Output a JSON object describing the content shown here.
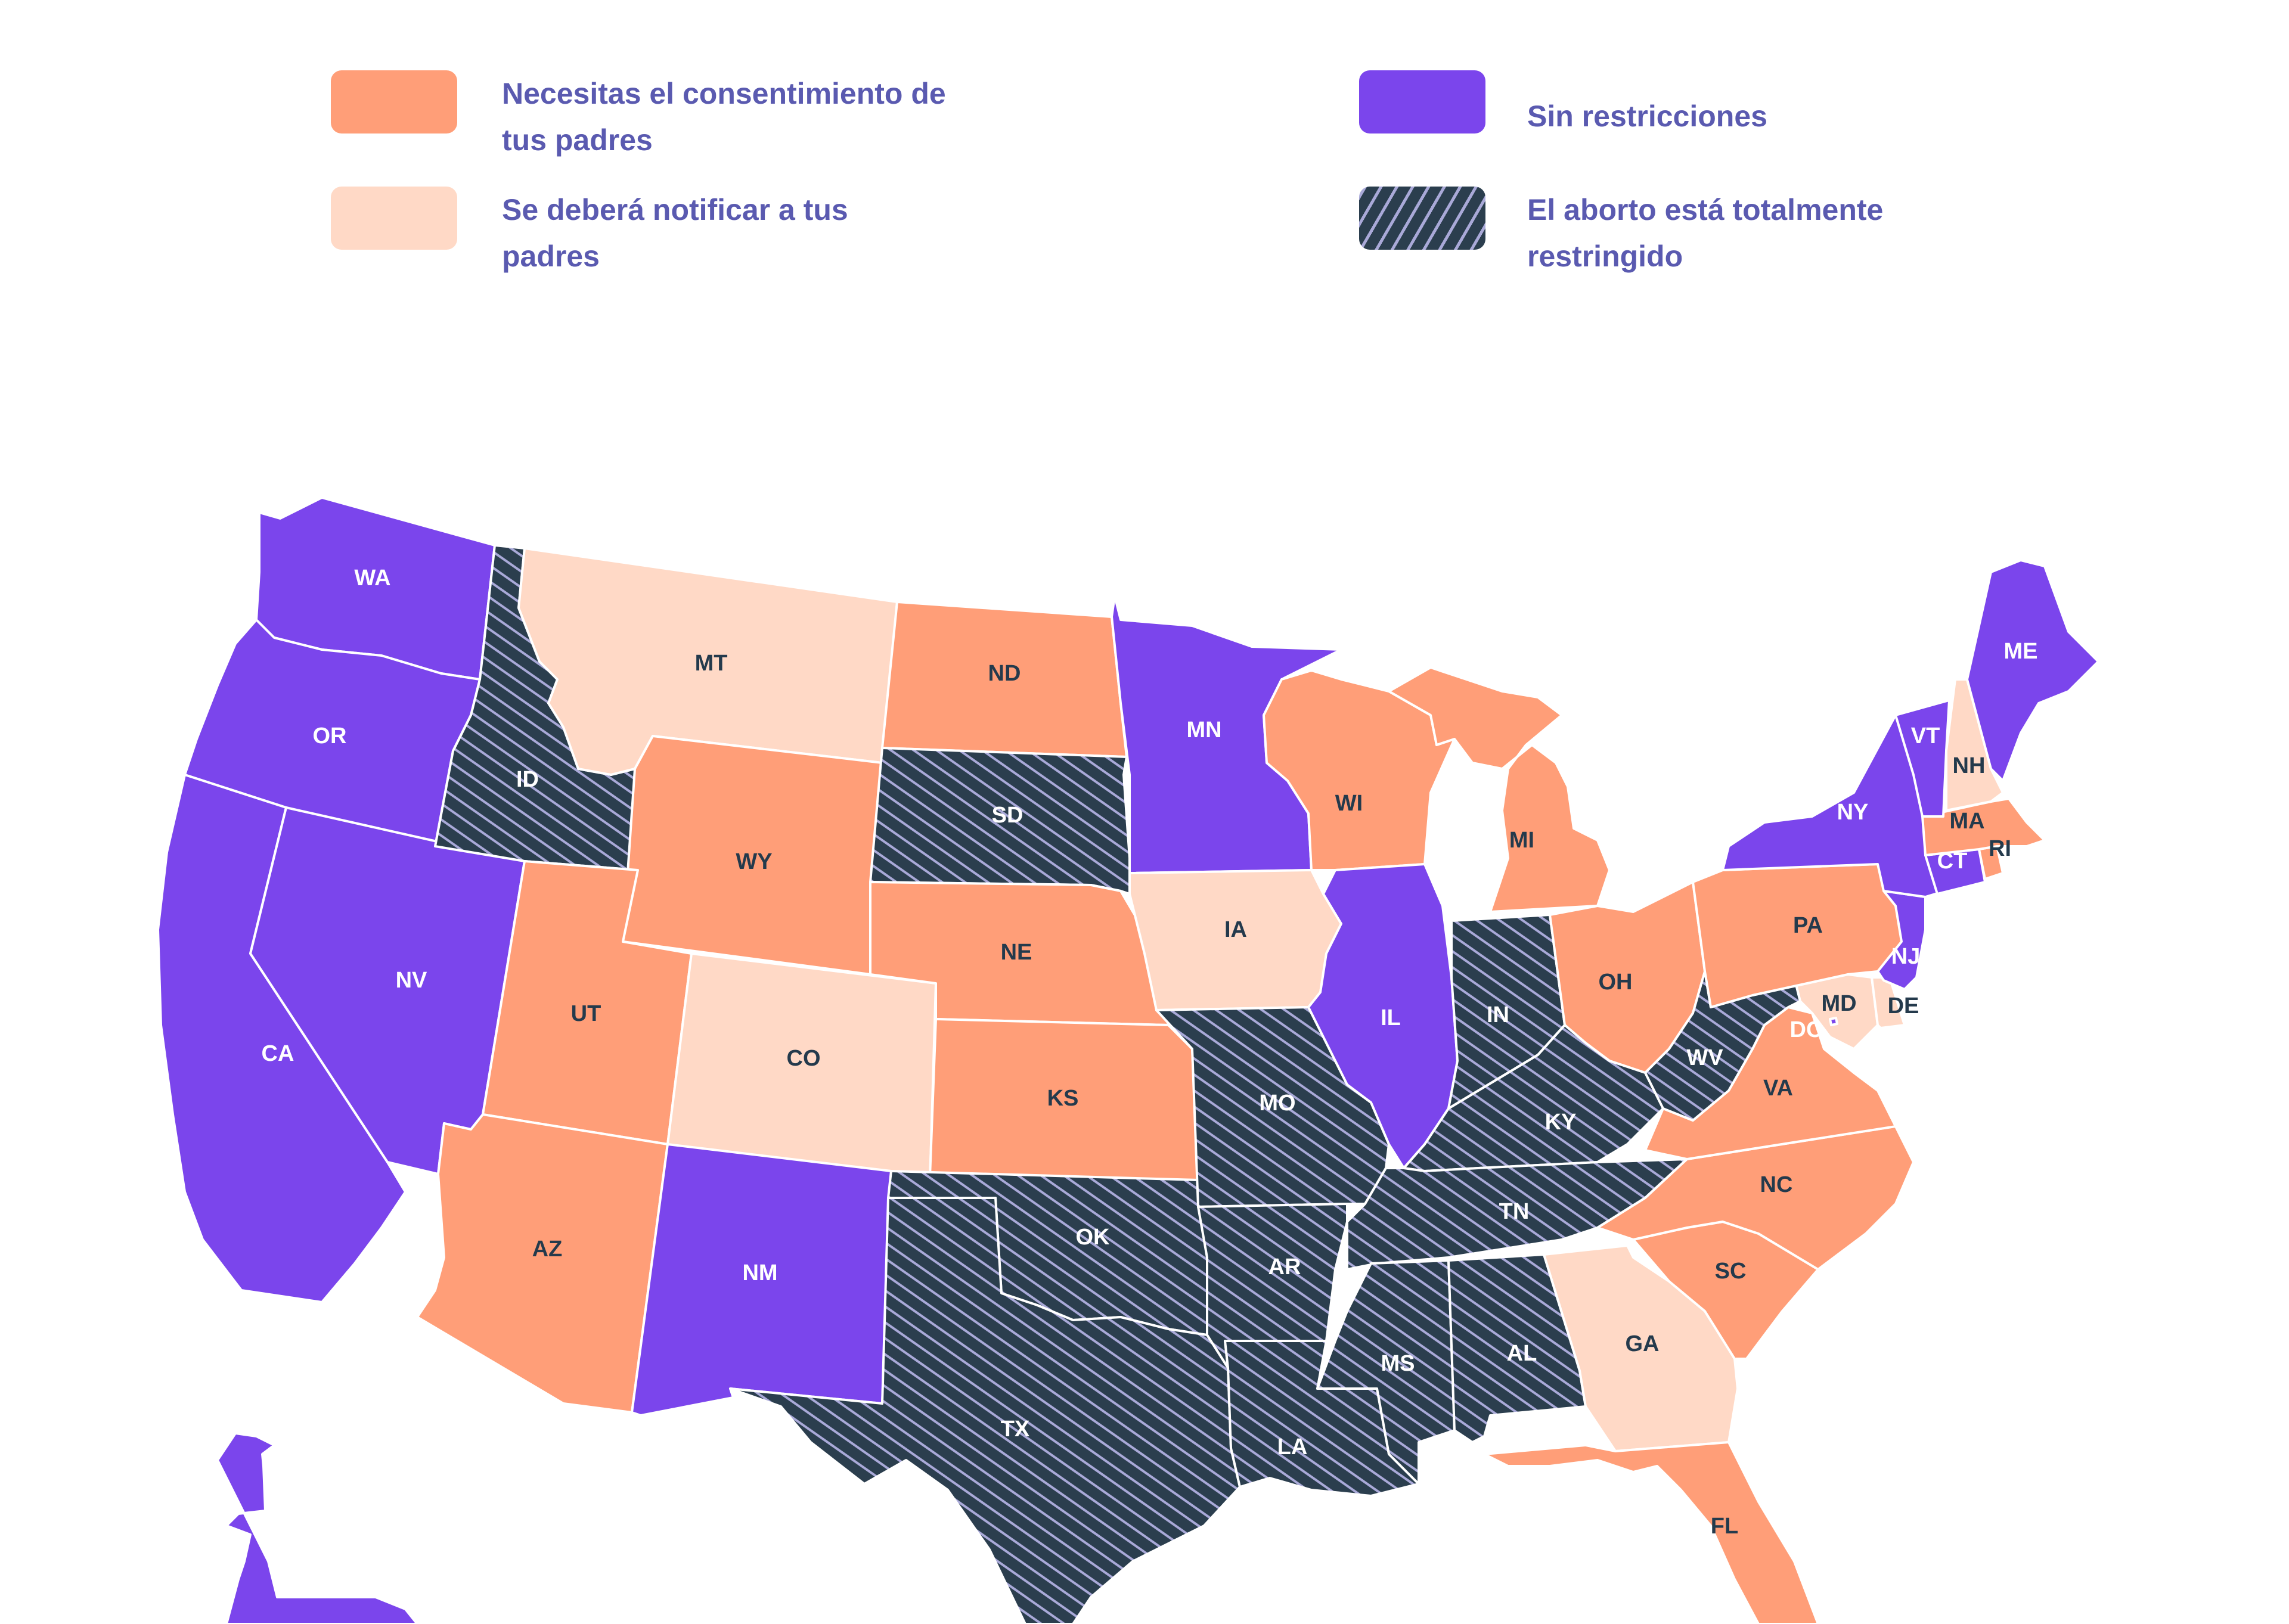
{
  "legend": {
    "items": [
      {
        "key": "consent",
        "label": "Necesitas el consentimiento de tus padres",
        "color": "#ff9e78"
      },
      {
        "key": "notify",
        "label": "Se deberá notificar a tus padres",
        "color": "#ffd9c6"
      },
      {
        "key": "none",
        "label": "Sin restricciones",
        "color": "#7b45ec"
      },
      {
        "key": "banned",
        "label": "El aborto está totalmente restringido",
        "color": "#2b3e4e",
        "pattern": "diagonal-hatch",
        "hatch_color": "#a9a9d8"
      }
    ]
  },
  "colors": {
    "consent": "#ff9e78",
    "notify": "#ffd9c6",
    "none": "#7b45ec",
    "banned": "#2b3e4e",
    "label_dark": "#243a4c",
    "label_light": "#ffffff",
    "legend_text": "#5a5ab0"
  },
  "map": {
    "states": [
      {
        "abbr": "WA",
        "status": "none"
      },
      {
        "abbr": "OR",
        "status": "none"
      },
      {
        "abbr": "CA",
        "status": "none"
      },
      {
        "abbr": "NV",
        "status": "none"
      },
      {
        "abbr": "ID",
        "status": "banned"
      },
      {
        "abbr": "MT",
        "status": "notify"
      },
      {
        "abbr": "WY",
        "status": "consent"
      },
      {
        "abbr": "UT",
        "status": "consent"
      },
      {
        "abbr": "CO",
        "status": "notify"
      },
      {
        "abbr": "AZ",
        "status": "consent"
      },
      {
        "abbr": "NM",
        "status": "none"
      },
      {
        "abbr": "ND",
        "status": "consent"
      },
      {
        "abbr": "SD",
        "status": "banned"
      },
      {
        "abbr": "NE",
        "status": "consent"
      },
      {
        "abbr": "KS",
        "status": "consent"
      },
      {
        "abbr": "OK",
        "status": "banned"
      },
      {
        "abbr": "TX",
        "status": "banned"
      },
      {
        "abbr": "MN",
        "status": "none"
      },
      {
        "abbr": "IA",
        "status": "notify"
      },
      {
        "abbr": "MO",
        "status": "banned"
      },
      {
        "abbr": "AR",
        "status": "banned"
      },
      {
        "abbr": "LA",
        "status": "banned"
      },
      {
        "abbr": "WI",
        "status": "consent"
      },
      {
        "abbr": "IL",
        "status": "none"
      },
      {
        "abbr": "MI",
        "status": "consent"
      },
      {
        "abbr": "IN",
        "status": "banned"
      },
      {
        "abbr": "OH",
        "status": "consent"
      },
      {
        "abbr": "KY",
        "status": "banned"
      },
      {
        "abbr": "TN",
        "status": "banned"
      },
      {
        "abbr": "MS",
        "status": "banned"
      },
      {
        "abbr": "AL",
        "status": "banned"
      },
      {
        "abbr": "GA",
        "status": "notify"
      },
      {
        "abbr": "FL",
        "status": "consent"
      },
      {
        "abbr": "SC",
        "status": "consent"
      },
      {
        "abbr": "NC",
        "status": "consent"
      },
      {
        "abbr": "VA",
        "status": "consent"
      },
      {
        "abbr": "WV",
        "status": "banned"
      },
      {
        "abbr": "DC",
        "status": "none"
      },
      {
        "abbr": "MD",
        "status": "notify"
      },
      {
        "abbr": "DE",
        "status": "notify"
      },
      {
        "abbr": "PA",
        "status": "consent"
      },
      {
        "abbr": "NJ",
        "status": "none"
      },
      {
        "abbr": "NY",
        "status": "none"
      },
      {
        "abbr": "CT",
        "status": "none"
      },
      {
        "abbr": "RI",
        "status": "consent"
      },
      {
        "abbr": "MA",
        "status": "consent"
      },
      {
        "abbr": "VT",
        "status": "none"
      },
      {
        "abbr": "NH",
        "status": "notify"
      },
      {
        "abbr": "ME",
        "status": "none"
      },
      {
        "abbr": "AK",
        "status": "none"
      }
    ]
  }
}
